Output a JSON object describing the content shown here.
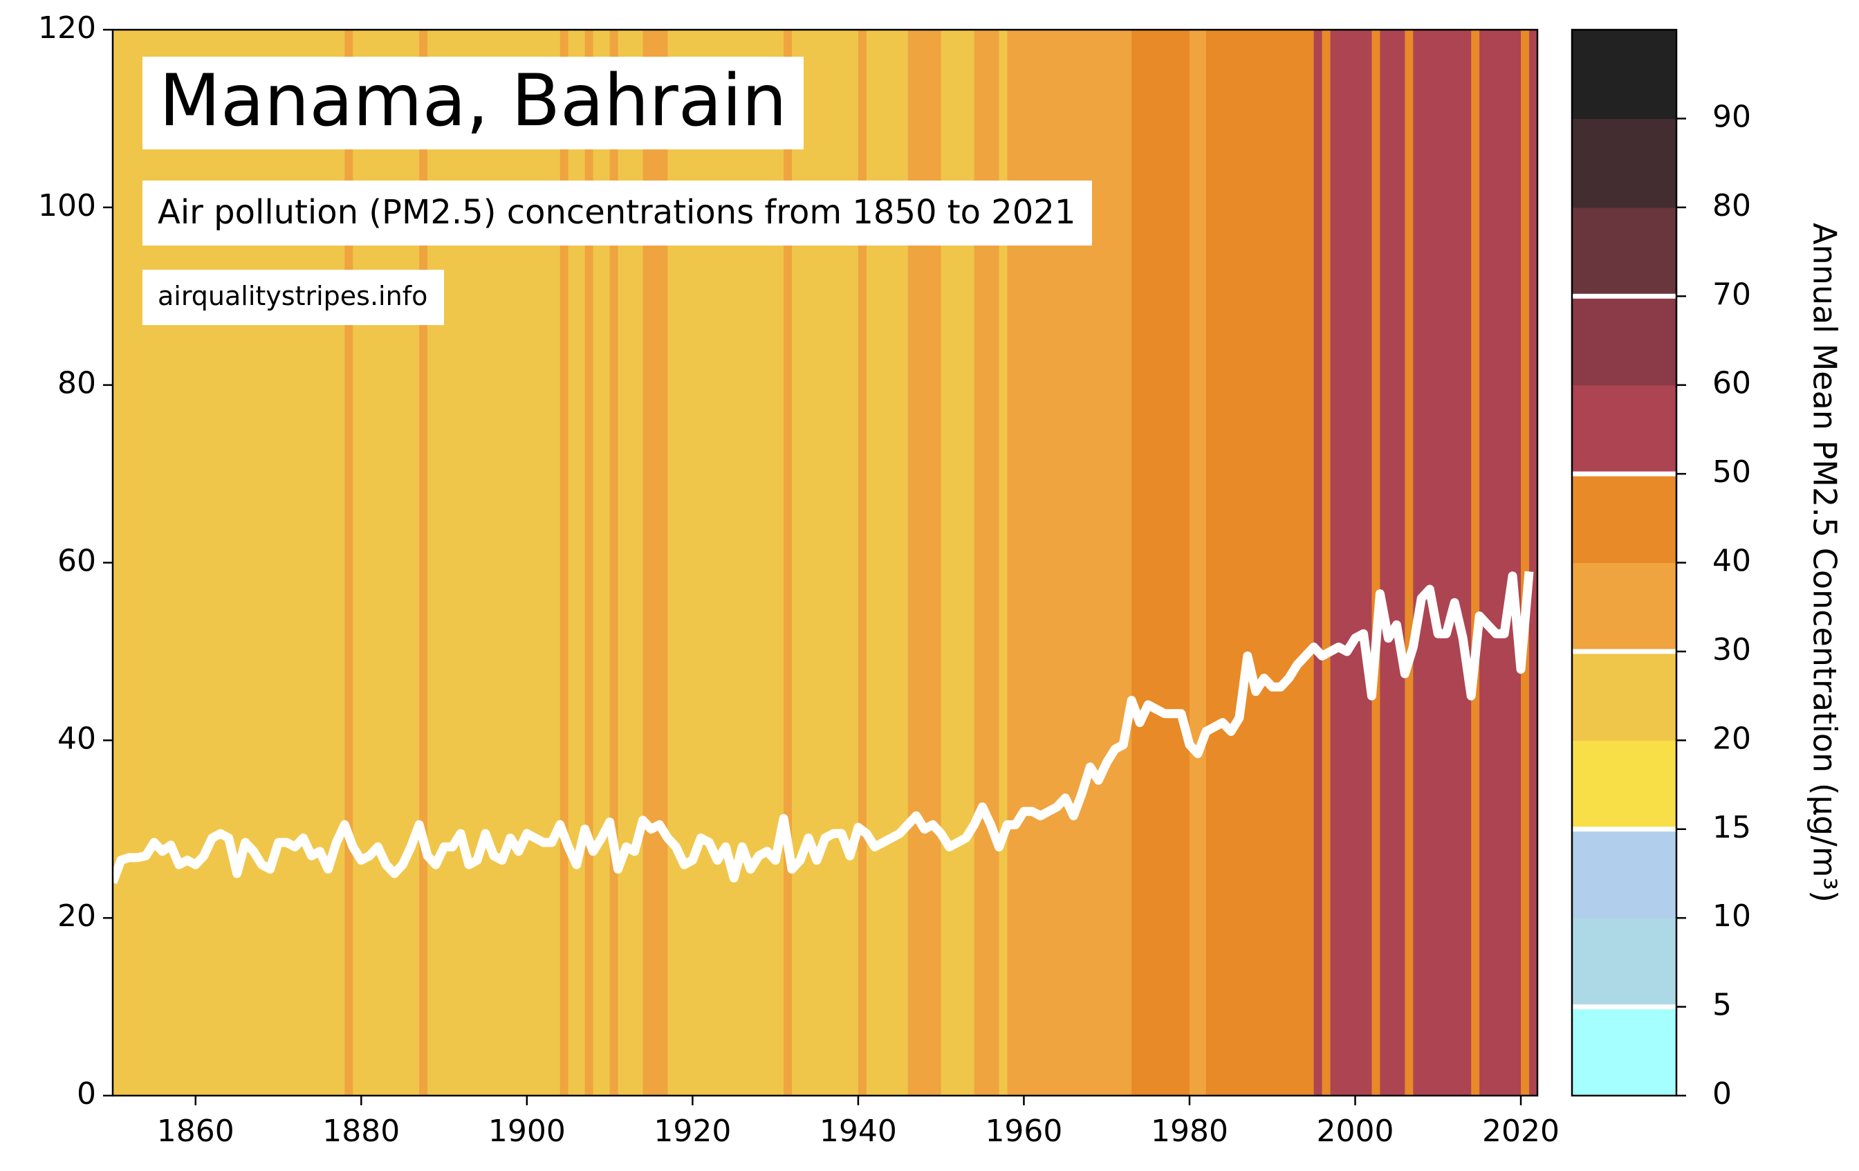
{
  "chart_data": {
    "type": "stripes",
    "title": "Manama, Bahrain",
    "subtitle": "Air pollution (PM2.5) concentrations from 1850 to 2021",
    "source": "airqualitystripes.info",
    "x": [
      1850,
      1851,
      1852,
      1853,
      1854,
      1855,
      1856,
      1857,
      1858,
      1859,
      1860,
      1861,
      1862,
      1863,
      1864,
      1865,
      1866,
      1867,
      1868,
      1869,
      1870,
      1871,
      1872,
      1873,
      1874,
      1875,
      1876,
      1877,
      1878,
      1879,
      1880,
      1881,
      1882,
      1883,
      1884,
      1885,
      1886,
      1887,
      1888,
      1889,
      1890,
      1891,
      1892,
      1893,
      1894,
      1895,
      1896,
      1897,
      1898,
      1899,
      1900,
      1901,
      1902,
      1903,
      1904,
      1905,
      1906,
      1907,
      1908,
      1909,
      1910,
      1911,
      1912,
      1913,
      1914,
      1915,
      1916,
      1917,
      1918,
      1919,
      1920,
      1921,
      1922,
      1923,
      1924,
      1925,
      1926,
      1927,
      1928,
      1929,
      1930,
      1931,
      1932,
      1933,
      1934,
      1935,
      1936,
      1937,
      1938,
      1939,
      1940,
      1941,
      1942,
      1943,
      1944,
      1945,
      1946,
      1947,
      1948,
      1949,
      1950,
      1951,
      1952,
      1953,
      1954,
      1955,
      1956,
      1957,
      1958,
      1959,
      1960,
      1961,
      1962,
      1963,
      1964,
      1965,
      1966,
      1967,
      1968,
      1969,
      1970,
      1971,
      1972,
      1973,
      1974,
      1975,
      1976,
      1977,
      1978,
      1979,
      1980,
      1981,
      1982,
      1983,
      1984,
      1985,
      1986,
      1987,
      1988,
      1989,
      1990,
      1991,
      1992,
      1993,
      1994,
      1995,
      1996,
      1997,
      1998,
      1999,
      2000,
      2001,
      2002,
      2003,
      2004,
      2005,
      2006,
      2007,
      2008,
      2009,
      2010,
      2011,
      2012,
      2013,
      2014,
      2015,
      2016,
      2017,
      2018,
      2019,
      2020,
      2021
    ],
    "values": [
      24,
      26.5,
      26.8,
      26.8,
      27,
      28.5,
      27.5,
      28.2,
      26,
      26.5,
      26,
      27,
      29,
      29.5,
      29,
      25,
      28.5,
      27.5,
      26,
      25.5,
      28.5,
      28.5,
      28,
      29,
      27,
      27.5,
      25.5,
      28.5,
      30.5,
      28,
      26.5,
      27,
      28,
      26,
      25,
      26,
      28,
      30.5,
      27,
      26,
      28,
      28,
      29.5,
      26,
      26.5,
      29.5,
      27,
      26.5,
      29,
      27.5,
      29.5,
      29,
      28.5,
      28.5,
      30.5,
      28,
      26,
      30,
      27.5,
      29,
      30.8,
      25.5,
      28,
      27.5,
      31,
      30,
      30.5,
      29,
      28,
      26,
      26.5,
      29,
      28.5,
      26.5,
      28,
      24.5,
      28,
      25.5,
      27,
      27.5,
      26.5,
      31.2,
      25.5,
      26.5,
      29,
      26.5,
      29,
      29.5,
      29.5,
      27,
      30.2,
      29.5,
      28,
      28.5,
      29,
      29.5,
      30.5,
      31.5,
      30,
      30.5,
      29.5,
      28,
      28.5,
      29,
      30.5,
      32.5,
      30.5,
      28,
      30.5,
      30.5,
      32,
      32,
      31.5,
      32,
      32.5,
      33.5,
      31.5,
      34,
      37,
      35.5,
      37.5,
      39,
      39.5,
      44.5,
      42,
      44,
      43.5,
      43,
      43,
      43,
      39.5,
      38.5,
      41,
      41.5,
      42,
      41,
      42.5,
      49.5,
      45.5,
      47,
      46,
      46,
      47,
      48.5,
      49.5,
      50.5,
      49.5,
      50,
      50.5,
      50,
      51.5,
      52,
      45,
      56.5,
      51.5,
      53,
      47.5,
      50.5,
      56,
      57,
      52,
      52,
      55.5,
      51.5,
      45,
      54,
      53,
      52,
      52,
      58.5,
      48,
      59
    ],
    "line_color": "#ffffff",
    "xlim": [
      1850,
      2022
    ],
    "xticks": [
      1860,
      1880,
      1900,
      1920,
      1940,
      1960,
      1980,
      2000,
      2020
    ],
    "ylim": [
      0,
      120
    ],
    "yticks": [
      0,
      20,
      40,
      60,
      80,
      100,
      120
    ],
    "colorbar": {
      "label": "Annual Mean PM2.5 Concentration (µg/m³)",
      "boundaries": [
        0,
        5,
        10,
        15,
        20,
        30,
        40,
        50,
        60,
        70,
        80,
        90,
        100
      ],
      "colors": [
        "#a6ffff",
        "#add8e6",
        "#b1cfec",
        "#f8de47",
        "#f0c64a",
        "#efa43f",
        "#e88a27",
        "#ad4452",
        "#8b3a47",
        "#68363c",
        "#432d30",
        "#222222"
      ],
      "ticks": [
        0,
        5,
        10,
        15,
        20,
        30,
        40,
        50,
        60,
        70,
        80,
        90
      ],
      "guide_lines": [
        5,
        15,
        30,
        50,
        70
      ]
    }
  }
}
